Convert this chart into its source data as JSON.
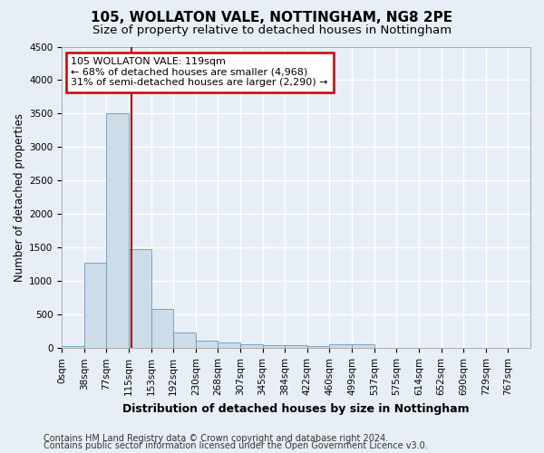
{
  "title": "105, WOLLATON VALE, NOTTINGHAM, NG8 2PE",
  "subtitle": "Size of property relative to detached houses in Nottingham",
  "xlabel": "Distribution of detached houses by size in Nottingham",
  "ylabel": "Number of detached properties",
  "bin_labels": [
    "0sqm",
    "38sqm",
    "77sqm",
    "115sqm",
    "153sqm",
    "192sqm",
    "230sqm",
    "268sqm",
    "307sqm",
    "345sqm",
    "384sqm",
    "422sqm",
    "460sqm",
    "499sqm",
    "537sqm",
    "575sqm",
    "614sqm",
    "652sqm",
    "690sqm",
    "729sqm",
    "767sqm"
  ],
  "bar_heights": [
    30,
    1270,
    3500,
    1480,
    580,
    240,
    115,
    85,
    55,
    50,
    40,
    35,
    55,
    55,
    0,
    0,
    0,
    0,
    0,
    0,
    0
  ],
  "bar_color": "#ccdce8",
  "bar_edge_color": "#6699bb",
  "ylim": [
    0,
    4500
  ],
  "yticks": [
    0,
    500,
    1000,
    1500,
    2000,
    2500,
    3000,
    3500,
    4000,
    4500
  ],
  "annotation_text_line1": "105 WOLLATON VALE: 119sqm",
  "annotation_text_line2": "← 68% of detached houses are smaller (4,968)",
  "annotation_text_line3": "31% of semi-detached houses are larger (2,290) →",
  "annotation_box_color": "#ffffff",
  "annotation_box_edge_color": "#cc0000",
  "vline_color": "#aa0000",
  "footer_line1": "Contains HM Land Registry data © Crown copyright and database right 2024.",
  "footer_line2": "Contains public sector information licensed under the Open Government Licence v3.0.",
  "background_color": "#e8eef5",
  "grid_color": "#ffffff",
  "title_fontsize": 11,
  "subtitle_fontsize": 9.5,
  "ylabel_fontsize": 8.5,
  "xlabel_fontsize": 9,
  "tick_fontsize": 7.5,
  "annot_fontsize": 8,
  "footer_fontsize": 7
}
